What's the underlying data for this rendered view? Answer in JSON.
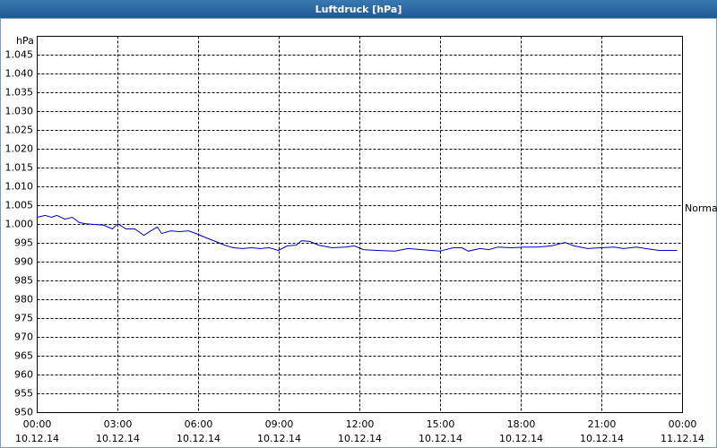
{
  "chart_data": {
    "type": "line",
    "title": "Luftdruck [hPa]",
    "y_label": "hPa",
    "annotation": "Normal",
    "x": [
      0,
      0.3,
      0.53,
      0.73,
      1.03,
      1.3,
      1.57,
      1.8,
      2.13,
      2.47,
      2.8,
      3,
      3.3,
      3.63,
      3.97,
      4.23,
      4.47,
      4.63,
      4.97,
      5.3,
      5.63,
      5.97,
      6.3,
      6.63,
      6.97,
      7.3,
      7.63,
      7.97,
      8.3,
      8.63,
      8.97,
      9.3,
      9.63,
      9.83,
      10.13,
      10.47,
      10.97,
      11.47,
      11.8,
      12.13,
      12.63,
      13.3,
      13.8,
      14.3,
      14.97,
      15.47,
      15.8,
      16.03,
      16.47,
      16.8,
      17.13,
      17.63,
      18.13,
      18.63,
      19.13,
      19.63,
      19.97,
      20.47,
      20.97,
      21.47,
      21.8,
      22.3,
      22.63,
      23.13,
      23.8
    ],
    "values": [
      1001.9,
      1002.4,
      1001.9,
      1002.4,
      1001.4,
      1001.9,
      1000.5,
      1000.2,
      1000,
      999.8,
      998.8,
      1000.2,
      998.8,
      998.8,
      997.1,
      998.3,
      999.3,
      997.6,
      998.3,
      998.1,
      998.3,
      997.4,
      996.4,
      995.5,
      994.5,
      993.8,
      993.6,
      993.8,
      993.6,
      993.8,
      993.1,
      994.3,
      994.5,
      995.7,
      995.5,
      994.5,
      993.8,
      994,
      994.3,
      993.3,
      993.1,
      992.9,
      993.6,
      993.3,
      992.9,
      993.8,
      993.8,
      992.9,
      993.6,
      993.3,
      994,
      993.8,
      994,
      994,
      994.3,
      995.2,
      994.3,
      993.6,
      993.8,
      994,
      993.6,
      994,
      993.6,
      993.1,
      993.1
    ],
    "color": "#0000c0",
    "xlim": [
      0,
      24
    ],
    "xticks": [
      {
        "value": 0,
        "label": "00:00"
      },
      {
        "value": 3,
        "label": "03:00"
      },
      {
        "value": 6,
        "label": "06:00"
      },
      {
        "value": 9,
        "label": "09:00"
      },
      {
        "value": 12,
        "label": "12:00"
      },
      {
        "value": 15,
        "label": "15:00"
      },
      {
        "value": 18,
        "label": "18:00"
      },
      {
        "value": 21,
        "label": "21:00"
      },
      {
        "value": 24,
        "label": "00:00"
      }
    ],
    "xtick_dates": [
      "10.12.14",
      "10.12.14",
      "10.12.14",
      "10.12.14",
      "10.12.14",
      "10.12.14",
      "10.12.14",
      "10.12.14",
      "11.12.14"
    ],
    "ylim": [
      950,
      1050
    ],
    "yticks": [
      950,
      955,
      960,
      965,
      970,
      975,
      980,
      985,
      990,
      995,
      {
        "value": 1000,
        "label": "1.000"
      },
      {
        "value": 1005,
        "label": "1.005"
      },
      {
        "value": 1010,
        "label": "1.010"
      },
      {
        "value": 1015,
        "label": "1.015"
      },
      {
        "value": 1020,
        "label": "1.020"
      },
      {
        "value": 1025,
        "label": "1.025"
      },
      {
        "value": 1030,
        "label": "1.030"
      },
      {
        "value": 1035,
        "label": "1.035"
      },
      {
        "value": 1040,
        "label": "1.040"
      },
      {
        "value": 1045,
        "label": "1.045"
      }
    ],
    "grid": true
  }
}
